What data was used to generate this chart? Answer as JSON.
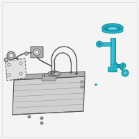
{
  "bg_color": "#f4f4f4",
  "highlight_color": "#29b8cc",
  "hl_dark": "#1a8fa0",
  "hl_light": "#5dd0e0",
  "gray_line": "#777777",
  "gray_fill": "#d0d0d0",
  "gray_mid": "#b0b0b0",
  "gray_dark": "#555555",
  "border_color": "#dddddd",
  "white": "#ffffff"
}
